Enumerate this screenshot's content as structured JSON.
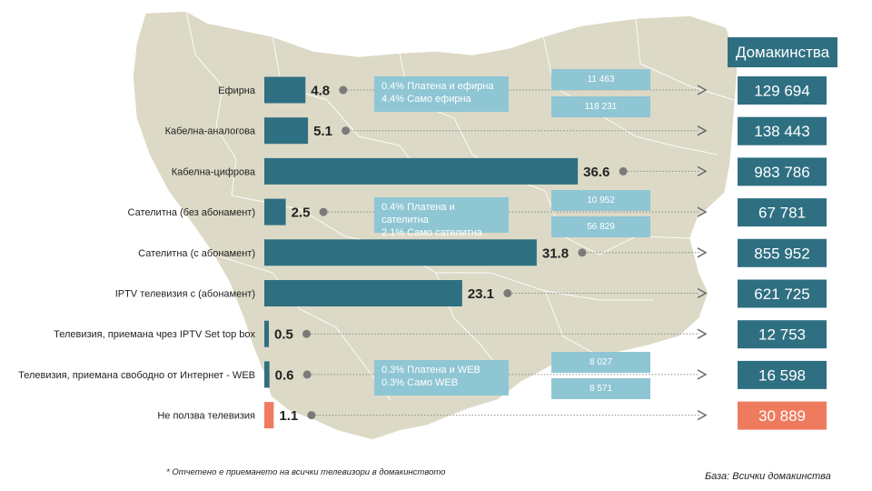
{
  "header": {
    "households_title": "Домакинства"
  },
  "footnote": "* Отчетено е приемането на всички телевизори в домакинството",
  "base_note": "База: Всички домакинства",
  "colors": {
    "bar": "#2f6f82",
    "bar_highlight": "#ef7b5e",
    "info_box": "#8fc6d4",
    "map": "#dcd9c6"
  },
  "info_boxes": [
    {
      "line1": "0.4% Платена и ефирна",
      "line2": "4.4% Само ефирна",
      "count_top": "11 463",
      "count_bottom": "118 231"
    },
    {
      "line1": "0.4% Платена и сателитна",
      "line2": "2.1% Само  сателитна",
      "count_top": "10 952",
      "count_bottom": "56 829"
    },
    {
      "line1": "0.3% Платена и  WEB",
      "line2": "0.3% Само WEB",
      "count_top": "8 027",
      "count_bottom": "8 571"
    }
  ],
  "chart_data": {
    "type": "bar",
    "orientation": "horizontal",
    "unit": "%",
    "categories": [
      "Ефирна",
      "Кабелна-аналогова",
      "Кабелна-цифрова",
      "Сателитна (без абонамент)",
      "Сателитна (с абонамент)",
      "IPTV телевизия с (абонамент)",
      "Телевизия, приемана чрез IPTV Set top box",
      "Телевизия, приемана свободно от Интернет - WEB",
      "Не ползва телевизия"
    ],
    "values": [
      4.8,
      5.1,
      36.6,
      2.5,
      31.8,
      23.1,
      0.5,
      0.6,
      1.1
    ],
    "value_labels": [
      "4.8",
      "5.1",
      "36.6",
      "2.5",
      "31.8",
      "23.1",
      "0.5",
      "0.6",
      "1.1"
    ],
    "households": [
      "129 694",
      "138 443",
      "983 786",
      "67 781",
      "855 952",
      "621 725",
      "12 753",
      "16 598",
      "30 889"
    ],
    "highlight_index": 8
  }
}
